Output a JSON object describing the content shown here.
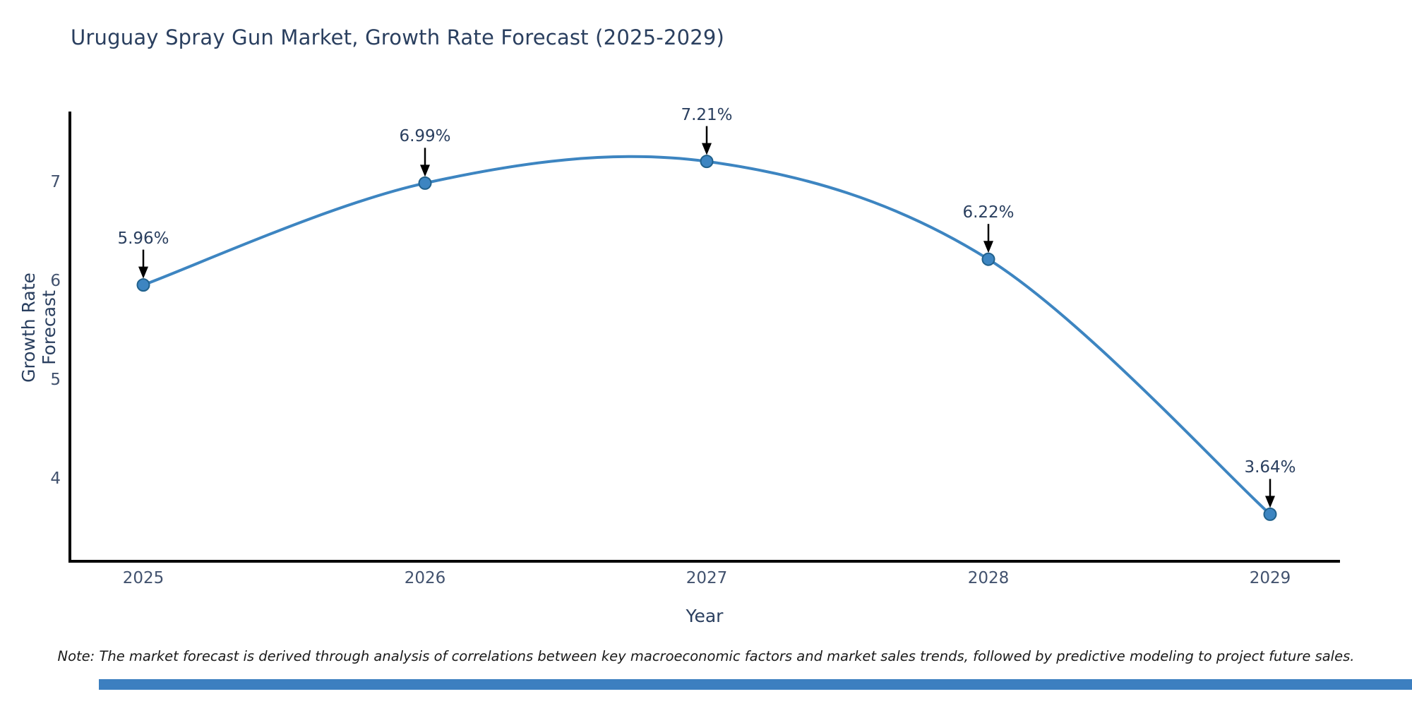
{
  "title": "Uruguay Spray Gun Market, Growth Rate Forecast (2025-2029)",
  "chart_data": {
    "type": "line",
    "title": "Uruguay Spray Gun Market, Growth Rate Forecast (2025-2029)",
    "categories": [
      "2025",
      "2026",
      "2027",
      "2028",
      "2029"
    ],
    "values": [
      5.96,
      6.99,
      7.21,
      6.22,
      3.64
    ],
    "point_labels": [
      "5.96%",
      "6.99%",
      "7.21%",
      "6.22%",
      "3.64%"
    ],
    "xlabel": "Year",
    "ylabel": "Growth Rate Forecast",
    "yticks": [
      4,
      5,
      6,
      7
    ],
    "ylim": [
      3.3,
      7.75
    ],
    "line_shape": "spline",
    "grid": false,
    "legend": "none",
    "line_color": "#3d85c1",
    "marker_fill_color": "#3d85c1",
    "marker_edge_color": "#21618c",
    "arrow_color": "#000000",
    "axis_line_color": "#000000",
    "tick_label_color": "#42526e",
    "title_color": "#2a3f5f"
  },
  "note": "Note: The market forecast is derived through analysis of correlations between key macroeconomic factors and market sales trends, followed by predictive modeling to project future sales.",
  "footer_bar_color": "#3c7fc0"
}
